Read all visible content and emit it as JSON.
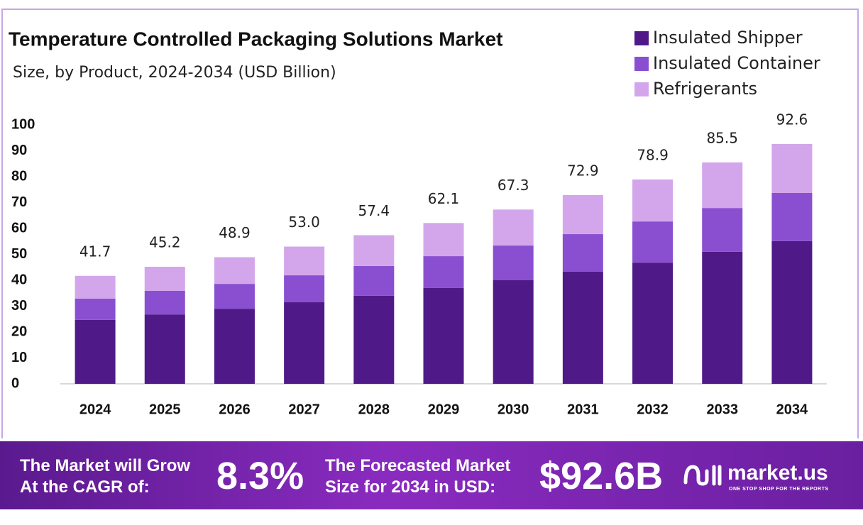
{
  "chart_data": {
    "type": "stacked_bar",
    "title": "Temperature Controlled Packaging Solutions Market",
    "subtitle": "Size, by Product, 2024-2034 (USD Billion)",
    "categories": [
      "2024",
      "2025",
      "2026",
      "2027",
      "2028",
      "2029",
      "2030",
      "2031",
      "2032",
      "2033",
      "2034"
    ],
    "series": [
      {
        "name": "Insulated Shipper",
        "color": "#4f1a87",
        "values": [
          24.7,
          26.8,
          29.0,
          31.5,
          34.0,
          37.0,
          40.0,
          43.3,
          46.8,
          51.0,
          55.1
        ]
      },
      {
        "name": "Insulated Container",
        "color": "#8a4fd0",
        "values": [
          8.2,
          9.1,
          9.6,
          10.4,
          11.5,
          12.3,
          13.4,
          14.5,
          15.9,
          16.9,
          18.6
        ]
      },
      {
        "name": "Refrigerants",
        "color": "#d3a6ec",
        "values": [
          8.8,
          9.3,
          10.3,
          11.1,
          11.9,
          12.8,
          13.9,
          15.1,
          16.2,
          17.6,
          18.9
        ]
      }
    ],
    "totals": {
      "values": [
        41.7,
        45.2,
        48.9,
        53.0,
        57.4,
        62.1,
        67.3,
        72.9,
        78.9,
        85.5,
        92.6
      ],
      "value_labels": [
        "41.7",
        "45.2",
        "48.9",
        "53.0",
        "57.4",
        "62.1",
        "67.3",
        "72.9",
        "78.9",
        "85.5",
        "92.6"
      ]
    },
    "ylim": [
      0,
      100
    ],
    "yticks": [
      0,
      10,
      20,
      30,
      40,
      50,
      60,
      70,
      80,
      90,
      100
    ],
    "grid": false,
    "legend": "top-right"
  },
  "footer": {
    "cagr_line1": "The Market will Grow",
    "cagr_line2": "At the CAGR of:",
    "cagr": "8.3%",
    "forecast_line1": "The Forecasted Market",
    "forecast_line2": "Size for 2034 in USD:",
    "forecast": "$92.6B",
    "brand": "market.us",
    "tagline": "ONE STOP SHOP FOR THE REPORTS"
  }
}
